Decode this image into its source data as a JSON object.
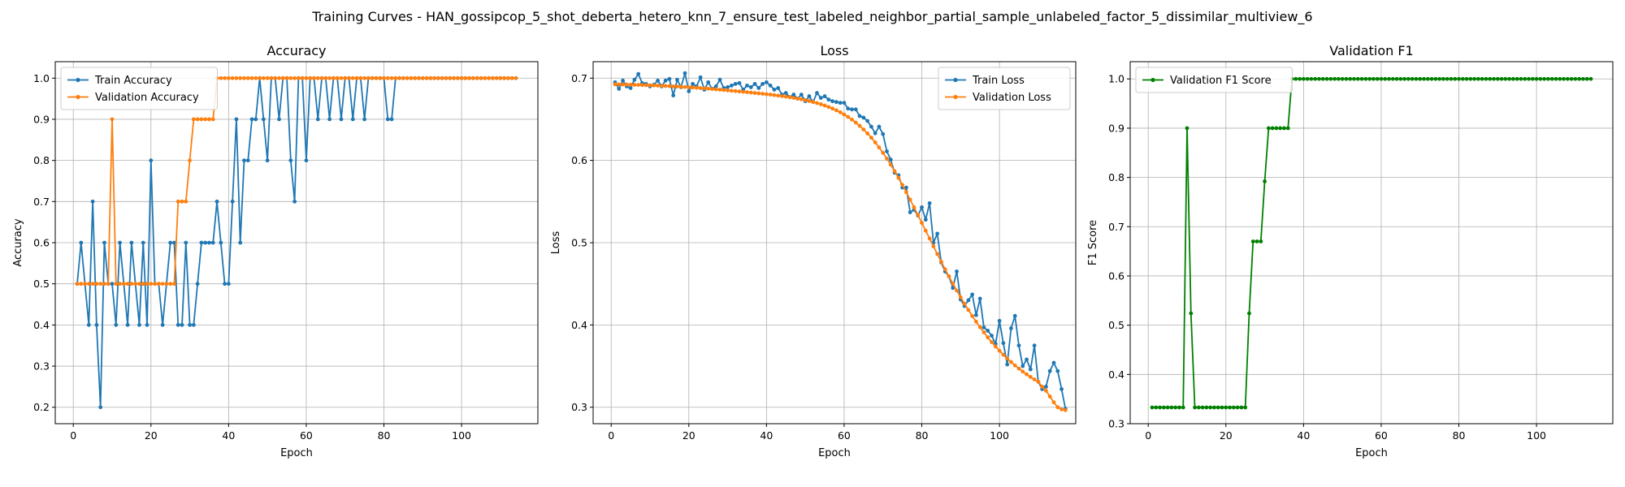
{
  "figure": {
    "title": "Training Curves - HAN_gossipcop_5_shot_deberta_hetero_knn_7_ensure_test_labeled_neighbor_partial_sample_unlabeled_factor_5_dissimilar_multiview_6"
  },
  "colors": {
    "train": "#1f77b4",
    "validation": "#ff7f0e",
    "f1": "#008000",
    "grid": "#b0b0b0"
  },
  "chart_data": [
    {
      "type": "line",
      "title": "Accuracy",
      "xlabel": "Epoch",
      "ylabel": "Accuracy",
      "xlim": [
        -4.65,
        119.65
      ],
      "ylim": [
        0.16,
        1.04
      ],
      "xticks": [
        0,
        20,
        40,
        60,
        80,
        100
      ],
      "yticks": [
        0.2,
        0.3,
        0.4,
        0.5,
        0.6,
        0.7,
        0.8,
        0.9,
        1.0
      ],
      "ytick_labels": [
        "0.2",
        "0.3",
        "0.4",
        "0.5",
        "0.6",
        "0.7",
        "0.8",
        "0.9",
        "1.0"
      ],
      "grid": true,
      "legend": "upper-left",
      "series": [
        {
          "name": "Train Accuracy",
          "color": "#1f77b4",
          "x_start": 1,
          "values": [
            0.5,
            0.6,
            0.5,
            0.4,
            0.7,
            0.4,
            0.2,
            0.6,
            0.5,
            0.5,
            0.4,
            0.6,
            0.5,
            0.4,
            0.6,
            0.5,
            0.4,
            0.6,
            0.4,
            0.8,
            0.5,
            0.5,
            0.4,
            0.5,
            0.6,
            0.6,
            0.4,
            0.4,
            0.6,
            0.4,
            0.4,
            0.5,
            0.6,
            0.6,
            0.6,
            0.6,
            0.7,
            0.6,
            0.5,
            0.5,
            0.7,
            0.9,
            0.6,
            0.8,
            0.8,
            0.9,
            0.9,
            1.0,
            0.9,
            0.8,
            1.0,
            1.0,
            0.9,
            1.0,
            1.0,
            0.8,
            0.7,
            1.0,
            1.0,
            0.8,
            1.0,
            1.0,
            0.9,
            1.0,
            1.0,
            0.9,
            1.0,
            1.0,
            0.9,
            1.0,
            1.0,
            0.9,
            1.0,
            1.0,
            0.9,
            1.0,
            1.0,
            1.0,
            1.0,
            1.0,
            0.9,
            0.9,
            1.0,
            1.0,
            1.0,
            1.0,
            1.0,
            1.0,
            1.0,
            1.0,
            1.0,
            1.0,
            1.0,
            1.0,
            1.0,
            1.0,
            1.0,
            1.0,
            1.0,
            1.0,
            1.0,
            1.0,
            1.0,
            1.0,
            1.0,
            1.0,
            1.0,
            1.0,
            1.0,
            1.0,
            1.0,
            1.0,
            1.0,
            1.0
          ]
        },
        {
          "name": "Validation Accuracy",
          "color": "#ff7f0e",
          "x_start": 1,
          "values": [
            0.5,
            0.5,
            0.5,
            0.5,
            0.5,
            0.5,
            0.5,
            0.5,
            0.5,
            0.9,
            0.5,
            0.5,
            0.5,
            0.5,
            0.5,
            0.5,
            0.5,
            0.5,
            0.5,
            0.5,
            0.5,
            0.5,
            0.5,
            0.5,
            0.5,
            0.5,
            0.7,
            0.7,
            0.7,
            0.8,
            0.9,
            0.9,
            0.9,
            0.9,
            0.9,
            0.9,
            1.0,
            1.0,
            1.0,
            1.0,
            1.0,
            1.0,
            1.0,
            1.0,
            1.0,
            1.0,
            1.0,
            1.0,
            1.0,
            1.0,
            1.0,
            1.0,
            1.0,
            1.0,
            1.0,
            1.0,
            1.0,
            1.0,
            1.0,
            1.0,
            1.0,
            1.0,
            1.0,
            1.0,
            1.0,
            1.0,
            1.0,
            1.0,
            1.0,
            1.0,
            1.0,
            1.0,
            1.0,
            1.0,
            1.0,
            1.0,
            1.0,
            1.0,
            1.0,
            1.0,
            1.0,
            1.0,
            1.0,
            1.0,
            1.0,
            1.0,
            1.0,
            1.0,
            1.0,
            1.0,
            1.0,
            1.0,
            1.0,
            1.0,
            1.0,
            1.0,
            1.0,
            1.0,
            1.0,
            1.0,
            1.0,
            1.0,
            1.0,
            1.0,
            1.0,
            1.0,
            1.0,
            1.0,
            1.0,
            1.0,
            1.0,
            1.0,
            1.0,
            1.0
          ]
        }
      ]
    },
    {
      "type": "line",
      "title": "Loss",
      "xlabel": "Epoch",
      "ylabel": "Loss",
      "xlim": [
        -4.65,
        119.65
      ],
      "ylim": [
        0.28,
        0.72
      ],
      "xticks": [
        0,
        20,
        40,
        60,
        80,
        100
      ],
      "yticks": [
        0.3,
        0.4,
        0.5,
        0.6,
        0.7
      ],
      "ytick_labels": [
        "0.3",
        "0.4",
        "0.5",
        "0.6",
        "0.7"
      ],
      "grid": true,
      "legend": "upper-right",
      "series": [
        {
          "name": "Train Loss",
          "color": "#1f77b4",
          "x_start": 1,
          "values": [
            0.695,
            0.687,
            0.697,
            0.69,
            0.688,
            0.698,
            0.705,
            0.694,
            0.693,
            0.69,
            0.692,
            0.697,
            0.69,
            0.697,
            0.699,
            0.679,
            0.698,
            0.689,
            0.706,
            0.684,
            0.693,
            0.69,
            0.701,
            0.686,
            0.695,
            0.687,
            0.69,
            0.698,
            0.688,
            0.689,
            0.691,
            0.693,
            0.694,
            0.686,
            0.691,
            0.689,
            0.693,
            0.688,
            0.693,
            0.695,
            0.691,
            0.686,
            0.688,
            0.68,
            0.682,
            0.677,
            0.68,
            0.675,
            0.68,
            0.672,
            0.678,
            0.671,
            0.682,
            0.676,
            0.678,
            0.674,
            0.672,
            0.671,
            0.67,
            0.67,
            0.663,
            0.662,
            0.662,
            0.654,
            0.652,
            0.648,
            0.641,
            0.633,
            0.641,
            0.632,
            0.611,
            0.601,
            0.585,
            0.582,
            0.567,
            0.567,
            0.537,
            0.54,
            0.533,
            0.543,
            0.528,
            0.548,
            0.5,
            0.511,
            0.476,
            0.465,
            0.459,
            0.445,
            0.465,
            0.431,
            0.423,
            0.43,
            0.437,
            0.412,
            0.432,
            0.397,
            0.393,
            0.387,
            0.377,
            0.405,
            0.378,
            0.352,
            0.396,
            0.411,
            0.375,
            0.35,
            0.358,
            0.346,
            0.375,
            0.331,
            0.322,
            0.325,
            0.344,
            0.354,
            0.344,
            0.322,
            0.298
          ]
        },
        {
          "name": "Validation Loss",
          "color": "#ff7f0e",
          "x_start": 1,
          "values": [
            0.6925,
            0.6924,
            0.6923,
            0.6922,
            0.692,
            0.6919,
            0.6918,
            0.6916,
            0.6915,
            0.6913,
            0.6911,
            0.6909,
            0.6907,
            0.6905,
            0.6903,
            0.69,
            0.6898,
            0.6895,
            0.6892,
            0.6889,
            0.6886,
            0.6883,
            0.6879,
            0.6876,
            0.6872,
            0.6868,
            0.6864,
            0.686,
            0.6856,
            0.6851,
            0.6847,
            0.6843,
            0.6838,
            0.6834,
            0.6829,
            0.6825,
            0.682,
            0.6815,
            0.681,
            0.6805,
            0.68,
            0.6794,
            0.6788,
            0.6782,
            0.6775,
            0.6768,
            0.676,
            0.6752,
            0.6743,
            0.6733,
            0.6722,
            0.671,
            0.6697,
            0.6683,
            0.6667,
            0.665,
            0.663,
            0.6609,
            0.6585,
            0.6558,
            0.6529,
            0.6496,
            0.646,
            0.642,
            0.6376,
            0.6328,
            0.6276,
            0.6219,
            0.6158,
            0.6092,
            0.6022,
            0.5948,
            0.587,
            0.5788,
            0.5702,
            0.5614,
            0.5523,
            0.543,
            0.5336,
            0.5241,
            0.5146,
            0.5051,
            0.4956,
            0.4862,
            0.4769,
            0.4678,
            0.4589,
            0.4502,
            0.4418,
            0.4337,
            0.4258,
            0.4182,
            0.4109,
            0.404,
            0.3973,
            0.391,
            0.3849,
            0.3792,
            0.3738,
            0.3687,
            0.3638,
            0.3592,
            0.3549,
            0.3508,
            0.347,
            0.3434,
            0.34,
            0.3368,
            0.3338,
            0.331,
            0.325,
            0.32,
            0.313,
            0.306,
            0.3,
            0.2975,
            0.2965
          ]
        }
      ]
    },
    {
      "type": "line",
      "title": "Validation F1",
      "xlabel": "Epoch",
      "ylabel": "F1 Score",
      "xlim": [
        -4.65,
        119.65
      ],
      "ylim": [
        0.3,
        1.035
      ],
      "xticks": [
        0,
        20,
        40,
        60,
        80,
        100
      ],
      "yticks": [
        0.3,
        0.4,
        0.5,
        0.6,
        0.7,
        0.8,
        0.9,
        1.0
      ],
      "ytick_labels": [
        "0.3",
        "0.4",
        "0.5",
        "0.6",
        "0.7",
        "0.8",
        "0.9",
        "1.0"
      ],
      "grid": true,
      "legend": "upper-left",
      "series": [
        {
          "name": "Validation F1 Score",
          "color": "#008000",
          "x_start": 1,
          "values": [
            0.333,
            0.333,
            0.333,
            0.333,
            0.333,
            0.333,
            0.333,
            0.333,
            0.333,
            0.9,
            0.524,
            0.333,
            0.333,
            0.333,
            0.333,
            0.333,
            0.333,
            0.333,
            0.333,
            0.333,
            0.333,
            0.333,
            0.333,
            0.333,
            0.333,
            0.524,
            0.67,
            0.67,
            0.67,
            0.792,
            0.9,
            0.9,
            0.9,
            0.9,
            0.9,
            0.9,
            1.0,
            1.0,
            1.0,
            1.0,
            1.0,
            1.0,
            1.0,
            1.0,
            1.0,
            1.0,
            1.0,
            1.0,
            1.0,
            1.0,
            1.0,
            1.0,
            1.0,
            1.0,
            1.0,
            1.0,
            1.0,
            1.0,
            1.0,
            1.0,
            1.0,
            1.0,
            1.0,
            1.0,
            1.0,
            1.0,
            1.0,
            1.0,
            1.0,
            1.0,
            1.0,
            1.0,
            1.0,
            1.0,
            1.0,
            1.0,
            1.0,
            1.0,
            1.0,
            1.0,
            1.0,
            1.0,
            1.0,
            1.0,
            1.0,
            1.0,
            1.0,
            1.0,
            1.0,
            1.0,
            1.0,
            1.0,
            1.0,
            1.0,
            1.0,
            1.0,
            1.0,
            1.0,
            1.0,
            1.0,
            1.0,
            1.0,
            1.0,
            1.0,
            1.0,
            1.0,
            1.0,
            1.0,
            1.0,
            1.0,
            1.0,
            1.0,
            1.0,
            1.0
          ]
        }
      ]
    }
  ]
}
